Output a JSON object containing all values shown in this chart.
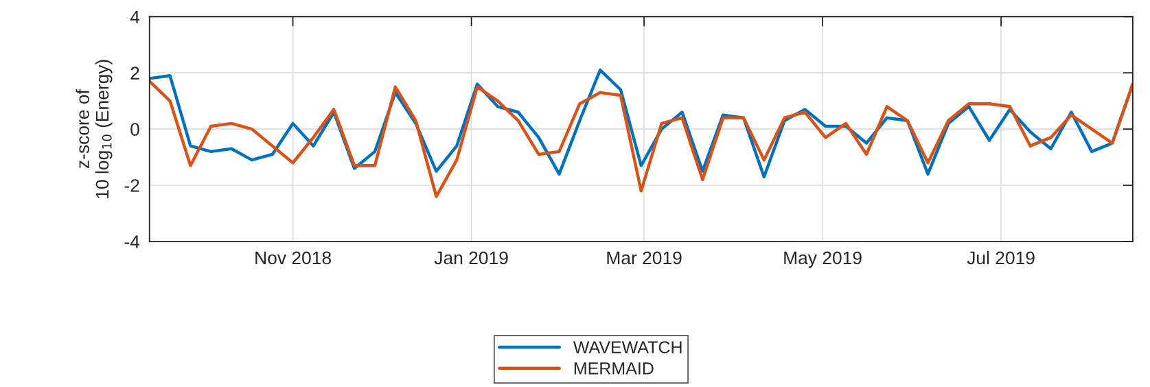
{
  "chart_data": {
    "type": "line",
    "ylabel": "z-score of\n10 log$_{10}$ (Energy)",
    "x": [
      "2018-09-13",
      "2018-09-20",
      "2018-09-27",
      "2018-10-04",
      "2018-10-11",
      "2018-10-18",
      "2018-10-25",
      "2018-11-01",
      "2018-11-08",
      "2018-11-15",
      "2018-11-22",
      "2018-11-29",
      "2018-12-06",
      "2018-12-13",
      "2018-12-20",
      "2018-12-27",
      "2019-01-03",
      "2019-01-10",
      "2019-01-17",
      "2019-01-24",
      "2019-01-31",
      "2019-02-07",
      "2019-02-14",
      "2019-02-21",
      "2019-02-28",
      "2019-03-07",
      "2019-03-14",
      "2019-03-21",
      "2019-03-28",
      "2019-04-04",
      "2019-04-11",
      "2019-04-18",
      "2019-04-25",
      "2019-05-02",
      "2019-05-09",
      "2019-05-16",
      "2019-05-23",
      "2019-05-30",
      "2019-06-06",
      "2019-06-13",
      "2019-06-20",
      "2019-06-27",
      "2019-07-04",
      "2019-07-11",
      "2019-07-18",
      "2019-07-25",
      "2019-08-01",
      "2019-08-08",
      "2019-08-15"
    ],
    "series": [
      {
        "name": "WAVEWATCH",
        "color": "#0072bd",
        "values": [
          1.8,
          1.9,
          -0.6,
          -0.8,
          -0.7,
          -1.1,
          -0.9,
          0.2,
          -0.6,
          0.6,
          -1.4,
          -0.8,
          1.3,
          0.2,
          -1.5,
          -0.6,
          1.6,
          0.8,
          0.6,
          -0.3,
          -1.6,
          0.3,
          2.1,
          1.4,
          -1.3,
          0.0,
          0.6,
          -1.5,
          0.5,
          0.4,
          -1.7,
          0.3,
          0.7,
          0.1,
          0.1,
          -0.5,
          0.4,
          0.3,
          -1.6,
          0.2,
          0.8,
          -0.4,
          0.7,
          -0.1,
          -0.7,
          0.6,
          -0.8,
          -0.5,
          1.6
        ]
      },
      {
        "name": "MERMAID",
        "color": "#d95319",
        "values": [
          1.7,
          1.0,
          -1.3,
          0.1,
          0.2,
          0.0,
          -0.6,
          -1.2,
          -0.3,
          0.7,
          -1.3,
          -1.3,
          1.5,
          0.3,
          -2.4,
          -1.1,
          1.5,
          1.0,
          0.3,
          -0.9,
          -0.8,
          0.9,
          1.3,
          1.2,
          -2.2,
          0.2,
          0.4,
          -1.8,
          0.4,
          0.4,
          -1.1,
          0.4,
          0.6,
          -0.3,
          0.2,
          -0.9,
          0.8,
          0.3,
          -1.2,
          0.3,
          0.9,
          0.9,
          0.8,
          -0.6,
          -0.3,
          0.5,
          0.0,
          -0.5,
          1.6
        ]
      }
    ],
    "xlim": [
      "2018-09-13",
      "2019-08-15"
    ],
    "xticks": [
      {
        "value": "2018-11-01",
        "label": "Nov 2018"
      },
      {
        "value": "2019-01-01",
        "label": "Jan 2019"
      },
      {
        "value": "2019-03-01",
        "label": "Mar 2019"
      },
      {
        "value": "2019-05-01",
        "label": "May 2019"
      },
      {
        "value": "2019-07-01",
        "label": "Jul 2019"
      }
    ],
    "ylim": [
      -4,
      4
    ],
    "yticks": [
      -4,
      -2,
      0,
      2,
      4
    ],
    "grid": true,
    "legend": "bottom",
    "line_style": "solid",
    "marker": "none"
  }
}
